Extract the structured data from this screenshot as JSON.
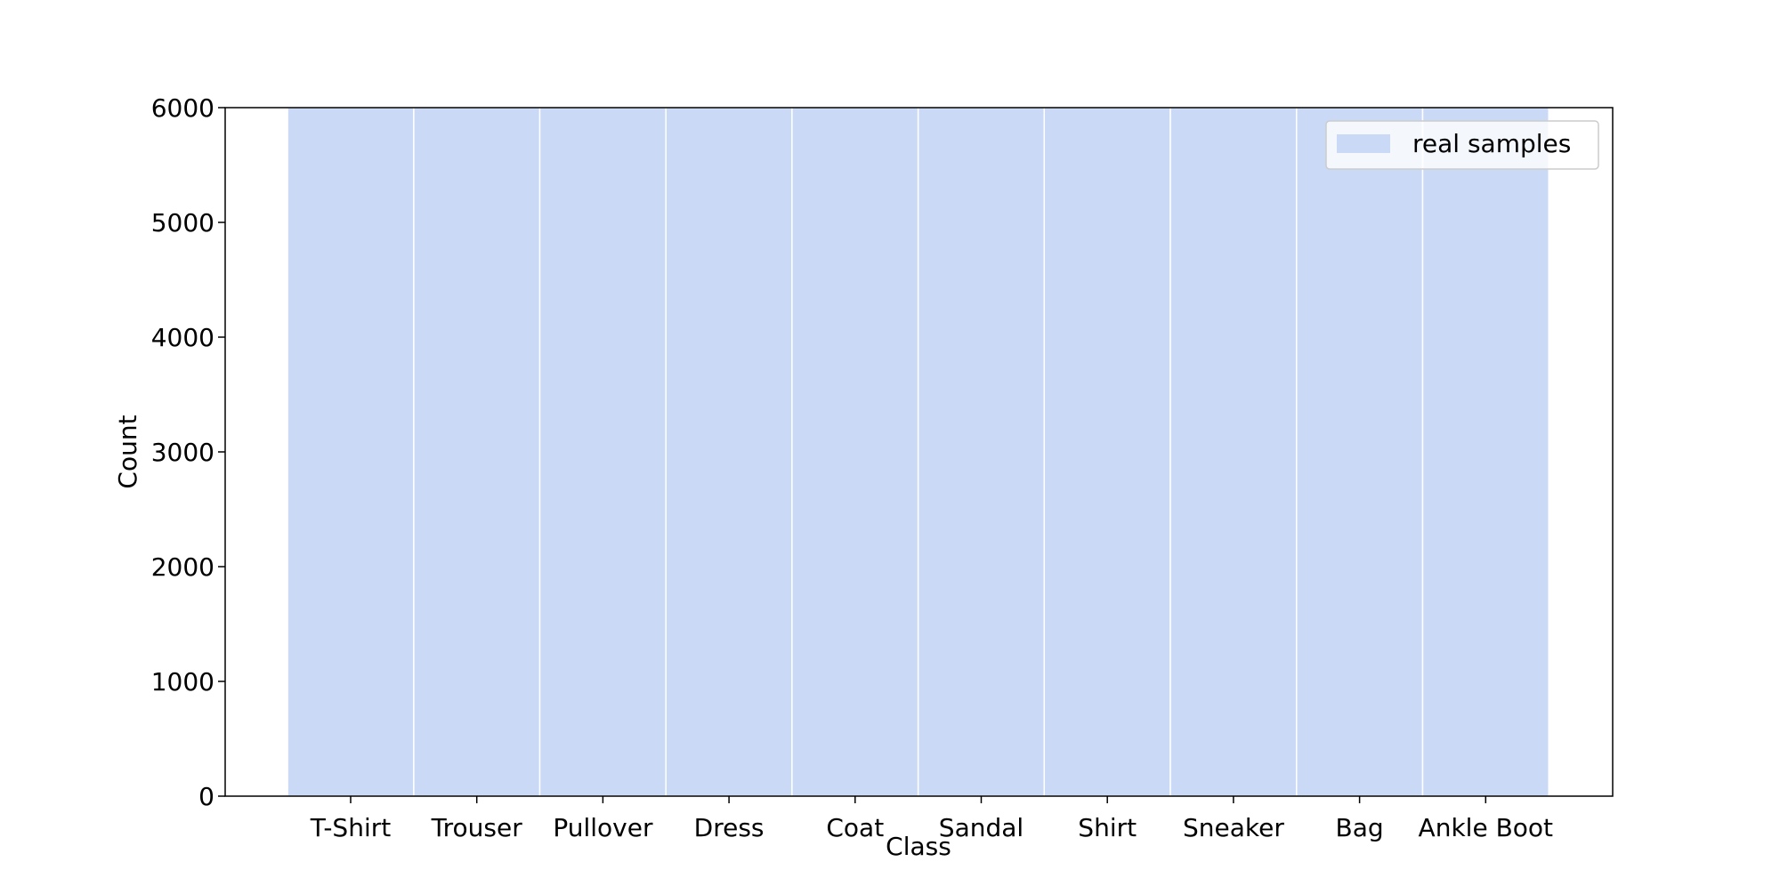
{
  "chart_data": {
    "type": "bar",
    "categories": [
      "T-Shirt",
      "Trouser",
      "Pullover",
      "Dress",
      "Coat",
      "Sandal",
      "Shirt",
      "Sneaker",
      "Bag",
      "Ankle Boot"
    ],
    "series": [
      {
        "name": "real samples",
        "values": [
          6000,
          6000,
          6000,
          6000,
          6000,
          6000,
          6000,
          6000,
          6000,
          6000
        ]
      }
    ],
    "xlabel": "Class",
    "ylabel": "Count",
    "ylim": [
      0,
      6000
    ],
    "yticks": [
      0,
      1000,
      2000,
      3000,
      4000,
      5000,
      6000
    ],
    "grid": false,
    "legend_position": "top-right",
    "colors": {
      "bar_fill": "#c9d9f6",
      "bar_edge": "#ffffff",
      "axis": "#000000"
    }
  }
}
